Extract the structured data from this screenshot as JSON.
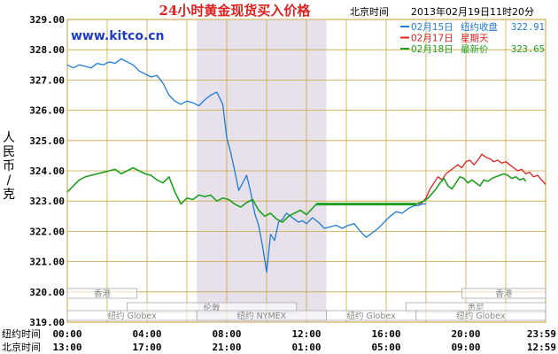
{
  "chart_data": {
    "type": "line",
    "title": "24小时黄金现货买入价格",
    "watermark": "www.kitco.cn",
    "timezone_label": "北京时间",
    "timestamp": "2013年02月19日11时20分",
    "ylabel": "人民币/克",
    "ylim": [
      319.0,
      329.0
    ],
    "y_ticks": [
      "319.00",
      "320.00",
      "321.00",
      "322.00",
      "323.00",
      "324.00",
      "325.00",
      "326.00",
      "327.00",
      "328.00",
      "329.00"
    ],
    "grid": true,
    "legend_position": "top-right",
    "x_rows": [
      {
        "label": "纽约时间",
        "ticks": [
          "00:00",
          "04:00",
          "08:00",
          "12:00",
          "16:00",
          "20:00",
          "23:59"
        ]
      },
      {
        "label": "北京时间",
        "ticks": [
          "13:00",
          "17:00",
          "21:00",
          "01:00",
          "05:00",
          "09:00",
          "12:59"
        ]
      }
    ],
    "markets": [
      {
        "name": "香港",
        "row": 0,
        "start": 0.0,
        "end": 3.5
      },
      {
        "name": "香港",
        "row": 0,
        "start": 19.8,
        "end": 24.0
      },
      {
        "name": "伦敦",
        "row": 1,
        "start": 3.0,
        "end": 11.5
      },
      {
        "name": "悉尼",
        "row": 1,
        "start": 17.0,
        "end": 24.0
      },
      {
        "name": "纽约 Globex",
        "row": 2,
        "start": 0.0,
        "end": 6.5
      },
      {
        "name": "纽约 NYMEX",
        "row": 2,
        "start": 6.5,
        "end": 13.0
      },
      {
        "name": "纽约 Globex",
        "row": 2,
        "start": 13.0,
        "end": 17.5
      },
      {
        "name": "纽约 Globex",
        "row": 2,
        "start": 17.5,
        "end": 24.0
      }
    ],
    "shaded_range": [
      6.5,
      13.0
    ],
    "series": [
      {
        "date": "02月15日",
        "tag": "纽约收盘",
        "value": "322.91",
        "color": "#1e7bd8",
        "x": [
          0,
          0.3,
          0.6,
          0.9,
          1.2,
          1.5,
          1.8,
          2.1,
          2.4,
          2.7,
          3.0,
          3.3,
          3.6,
          3.9,
          4.2,
          4.5,
          4.8,
          5.1,
          5.4,
          5.7,
          6.0,
          6.3,
          6.6,
          6.9,
          7.2,
          7.5,
          7.8,
          8.0,
          8.2,
          8.4,
          8.6,
          8.8,
          9.0,
          9.2,
          9.4,
          9.6,
          9.8,
          10.0,
          10.2,
          10.4,
          10.6,
          10.8,
          11.0,
          11.2,
          11.4,
          11.6,
          11.8,
          12.0,
          12.3,
          12.6,
          12.9,
          13.2,
          13.5,
          13.8,
          14.1,
          14.4,
          14.7,
          15.0,
          15.3,
          15.6,
          15.9,
          16.2,
          16.5,
          16.8,
          17.1,
          17.4,
          17.6,
          17.8,
          18.0
        ],
        "y": [
          327.5,
          327.4,
          327.5,
          327.45,
          327.4,
          327.55,
          327.5,
          327.6,
          327.55,
          327.7,
          327.6,
          327.5,
          327.3,
          327.2,
          327.1,
          327.15,
          326.9,
          326.5,
          326.3,
          326.2,
          326.3,
          326.25,
          326.15,
          326.35,
          326.5,
          326.6,
          326.2,
          325.1,
          324.6,
          324.0,
          323.35,
          323.6,
          323.85,
          323.3,
          322.6,
          322.2,
          321.5,
          320.65,
          321.9,
          321.7,
          322.3,
          322.4,
          322.6,
          322.5,
          322.4,
          322.3,
          322.35,
          322.25,
          322.45,
          322.3,
          322.1,
          322.15,
          322.2,
          322.1,
          322.2,
          322.25,
          322.0,
          321.8,
          321.95,
          322.1,
          322.3,
          322.5,
          322.65,
          322.6,
          322.75,
          322.85,
          322.85,
          322.9,
          322.91
        ]
      },
      {
        "date": "02月17日",
        "tag": "星期天",
        "value": "",
        "color": "#e02020",
        "x": [
          17.6,
          17.8,
          18.0,
          18.2,
          18.4,
          18.6,
          18.8,
          19.0,
          19.2,
          19.4,
          19.6,
          19.8,
          20.0,
          20.2,
          20.4,
          20.6,
          20.8,
          21.0,
          21.2,
          21.4,
          21.6,
          21.8,
          22.0,
          22.2,
          22.4,
          22.6,
          22.8,
          23.0,
          23.2,
          23.4,
          23.6,
          23.8,
          24.0
        ],
        "y": [
          322.9,
          322.95,
          323.1,
          323.4,
          323.6,
          323.8,
          323.7,
          323.9,
          324.0,
          324.1,
          324.2,
          324.1,
          324.3,
          324.35,
          324.2,
          324.35,
          324.55,
          324.45,
          324.4,
          324.3,
          324.35,
          324.25,
          324.3,
          324.2,
          324.1,
          324.0,
          324.05,
          323.9,
          323.95,
          323.8,
          323.85,
          323.7,
          323.55
        ]
      },
      {
        "date": "02月18日",
        "tag": "最新价",
        "value": "323.65",
        "color": "#20a020",
        "x": [
          0,
          0.3,
          0.6,
          0.9,
          1.2,
          1.5,
          1.8,
          2.1,
          2.4,
          2.7,
          3.0,
          3.3,
          3.6,
          3.9,
          4.2,
          4.5,
          4.8,
          5.1,
          5.4,
          5.7,
          6.0,
          6.3,
          6.6,
          6.9,
          7.2,
          7.5,
          7.8,
          8.1,
          8.4,
          8.7,
          9.0,
          9.3,
          9.6,
          9.9,
          10.2,
          10.5,
          10.8,
          11.1,
          11.4,
          11.7,
          12.0,
          12.5,
          13.0,
          13.5,
          14.0,
          14.5,
          15.0,
          15.5,
          16.0,
          16.5,
          17.0,
          17.5,
          17.7,
          17.9,
          18.1,
          18.3,
          18.5,
          18.7,
          18.9,
          19.1,
          19.3,
          19.5,
          19.7,
          19.9,
          20.1,
          20.3,
          20.5,
          20.7,
          20.9,
          21.1,
          21.3,
          21.5,
          21.7,
          21.9,
          22.1,
          22.3,
          22.5,
          22.7,
          22.9,
          23.0
        ],
        "y": [
          323.3,
          323.5,
          323.7,
          323.8,
          323.85,
          323.9,
          323.95,
          324.0,
          324.05,
          323.9,
          324.0,
          324.1,
          324.0,
          323.9,
          323.85,
          323.7,
          323.6,
          323.8,
          323.3,
          322.9,
          323.1,
          323.05,
          323.2,
          323.15,
          323.2,
          323.0,
          323.1,
          323.05,
          322.9,
          322.8,
          322.95,
          323.05,
          322.7,
          322.5,
          322.6,
          322.4,
          322.3,
          322.5,
          322.6,
          322.7,
          322.55,
          322.9,
          322.9,
          322.9,
          322.9,
          322.9,
          322.9,
          322.9,
          322.9,
          322.9,
          322.9,
          322.9,
          322.95,
          323.0,
          323.1,
          323.25,
          323.4,
          323.6,
          323.75,
          323.5,
          323.4,
          323.6,
          323.8,
          323.75,
          323.6,
          323.7,
          323.6,
          323.5,
          323.7,
          323.65,
          323.75,
          323.8,
          323.85,
          323.9,
          323.85,
          323.75,
          323.8,
          323.7,
          323.75,
          323.65
        ]
      }
    ]
  }
}
